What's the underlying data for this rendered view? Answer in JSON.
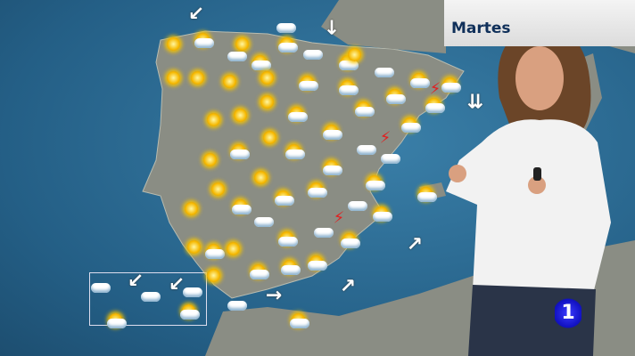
{
  "overlay": {
    "day_label": "Martes",
    "channel_logo": "1"
  },
  "colors": {
    "sea": "#2d6f97",
    "land": "#8c8f86",
    "day_label_text": "#10305a",
    "logo": "#2020e0"
  },
  "map": {
    "icons": [
      "sun",
      "sun-cloud",
      "sun",
      "cloud",
      "sun-cloud",
      "cloud",
      "sun-cloud",
      "cloud",
      "sun-cloud",
      "sun",
      "cloud",
      "sun-cloud",
      "sun-cloud",
      "sun",
      "sun",
      "sun",
      "sun",
      "sun-cloud",
      "sun-cloud",
      "sun-cloud",
      "sun-cloud",
      "storm",
      "sun",
      "sun",
      "sun",
      "sun-cloud",
      "sun-cloud",
      "sun-cloud",
      "sun-cloud",
      "sun",
      "sun-cloud",
      "sun",
      "sun-cloud",
      "cloud",
      "storm",
      "cloud",
      "sun-cloud",
      "sun",
      "sun",
      "sun-cloud",
      "sun-cloud",
      "cloud",
      "sun-cloud",
      "sun-cloud",
      "sun-cloud",
      "sun-cloud",
      "sun",
      "cloud",
      "sun",
      "sun-cloud",
      "sun",
      "sun-cloud",
      "cloud",
      "storm",
      "sun-cloud",
      "sun",
      "sun-cloud",
      "sun-cloud",
      "sun-cloud",
      "cloud",
      "sun-cloud",
      "cloud",
      "cloud",
      "sun-cloud",
      "cloud",
      "sun-cloud"
    ],
    "wind_arrows": [
      "down-left",
      "down",
      "double-down",
      "up-right",
      "down-left",
      "down-left",
      "right",
      "up-right"
    ]
  }
}
